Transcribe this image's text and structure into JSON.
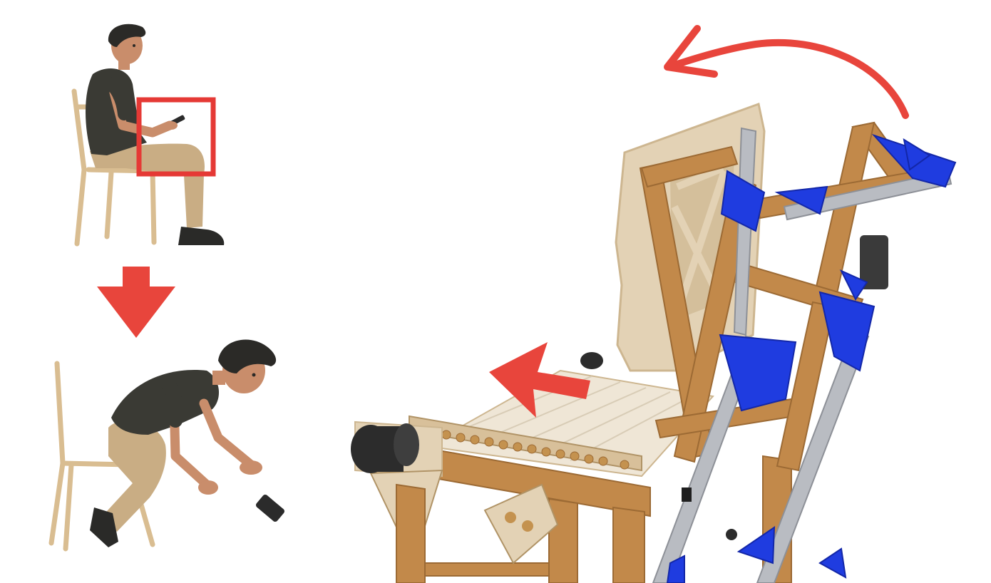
{
  "colors": {
    "arrow_red": "#e8453c",
    "highlight_red": "#e53935",
    "skin": "#c98d6b",
    "shirt": "#3a3a34",
    "pants": "#c9ad84",
    "hair": "#2b2a27",
    "chair_wood": "#d9bd91",
    "shoe": "#2a2a28",
    "phone": "#2b2b2b",
    "frame_wood": "#c2894a",
    "frame_wood_dark": "#9c6a34",
    "plywood": "#e3d2b5",
    "plywood_dark": "#cdb690",
    "bracket_blue": "#1f3ce0",
    "extrusion": "#b9bcc2",
    "extrusion_dark": "#8d9097",
    "roller": "#2c2c2c",
    "dowel": "#c4924f"
  },
  "panels": {
    "sitting": "person-sitting-using-phone",
    "bending": "person-bending-to-pick-up-dropped-phone",
    "machine": "wooden-tilting-machine-render"
  },
  "icons": [
    "down-arrow-icon",
    "left-arrow-icon",
    "curved-arrow-icon",
    "highlight-box"
  ]
}
